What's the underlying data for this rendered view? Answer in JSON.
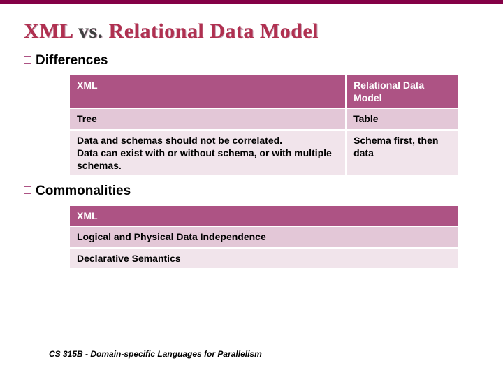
{
  "colors": {
    "top_bar": "#840046",
    "header_bg": "#ad5384",
    "header_fg": "#ffffff",
    "row_dark": "#e3c7d7",
    "row_light": "#f1e4eb",
    "bullet_border": "#ad5384",
    "title_shadow": "#c7a6b8"
  },
  "title": {
    "part1": "XML",
    "part2": "vs.",
    "part3": "Relational Data Model"
  },
  "sections": {
    "differences": {
      "heading": "Differences",
      "table": {
        "headers": [
          "XML",
          "Relational Data Model"
        ],
        "rows": [
          [
            "Tree",
            "Table"
          ],
          [
            "Data and schemas should not be correlated.\nData can exist with or without schema, or with multiple schemas.",
            "Schema first, then data"
          ]
        ]
      }
    },
    "commonalities": {
      "heading": "Commonalities",
      "table": {
        "headers": [
          "XML"
        ],
        "rows": [
          [
            "Logical and Physical Data Independence"
          ],
          [
            "Declarative Semantics"
          ]
        ]
      }
    }
  },
  "footer": "CS 315B - Domain-specific Languages for Parallelism"
}
